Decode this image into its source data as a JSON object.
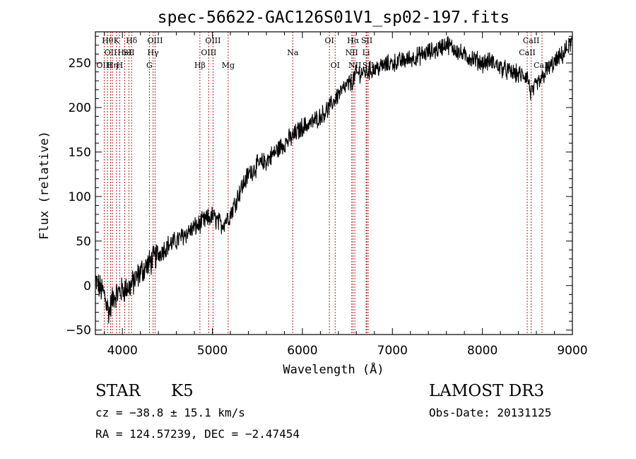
{
  "chart_data": {
    "type": "line",
    "title": "spec-56622-GAC126S01V1_sp02-197.fits",
    "xlabel": "Wavelength (Å)",
    "ylabel": "Flux (relative)",
    "xlim": [
      3700,
      9000
    ],
    "ylim": [
      -55,
      285
    ],
    "xticks": [
      4000,
      5000,
      6000,
      7000,
      8000,
      9000
    ],
    "yticks": [
      -50,
      0,
      50,
      100,
      150,
      200,
      250
    ],
    "line_color": "#000000",
    "marker_color": "#b22222",
    "spectrum_anchor_points": {
      "wavelength": [
        3700,
        3800,
        3850,
        3900,
        4000,
        4100,
        4200,
        4300,
        4400,
        4500,
        4600,
        4700,
        4800,
        4900,
        5000,
        5100,
        5200,
        5300,
        5400,
        5500,
        5600,
        5700,
        5800,
        5900,
        6000,
        6100,
        6200,
        6300,
        6400,
        6500,
        6560,
        6600,
        6700,
        6800,
        6900,
        7000,
        7100,
        7200,
        7300,
        7400,
        7500,
        7600,
        7700,
        7800,
        7900,
        8000,
        8100,
        8200,
        8300,
        8400,
        8500,
        8540,
        8600,
        8660,
        8700,
        8800,
        8900,
        9000
      ],
      "flux": [
        5,
        -10,
        -30,
        -12,
        -5,
        0,
        15,
        25,
        35,
        45,
        50,
        58,
        65,
        72,
        78,
        68,
        80,
        105,
        125,
        135,
        140,
        150,
        160,
        168,
        178,
        183,
        190,
        200,
        215,
        225,
        230,
        238,
        240,
        243,
        247,
        250,
        252,
        255,
        258,
        262,
        265,
        272,
        265,
        258,
        255,
        250,
        252,
        245,
        240,
        237,
        235,
        215,
        225,
        232,
        240,
        250,
        260,
        275
      ]
    },
    "line_markers": [
      {
        "wavelength": 3798,
        "label": "OIII",
        "row": 3
      },
      {
        "wavelength": 3835,
        "label": "Hθ",
        "row": 1
      },
      {
        "wavelength": 3869,
        "label": "OII",
        "row": 2
      },
      {
        "wavelength": 3889,
        "label": "Hη",
        "row": 3
      },
      {
        "wavelength": 3934,
        "label": "K",
        "row": 1
      },
      {
        "wavelength": 3970,
        "label": "H",
        "row": 3
      },
      {
        "wavelength": 4026,
        "label": "HeI",
        "row": 2
      },
      {
        "wavelength": 4072,
        "label": "SII",
        "row": 2
      },
      {
        "wavelength": 4102,
        "label": "Hδ",
        "row": 1
      },
      {
        "wavelength": 4300,
        "label": "G",
        "row": 3
      },
      {
        "wavelength": 4341,
        "label": "Hγ",
        "row": 2
      },
      {
        "wavelength": 4363,
        "label": "OIII",
        "row": 1
      },
      {
        "wavelength": 4861,
        "label": "Hβ",
        "row": 3
      },
      {
        "wavelength": 4959,
        "label": "OIII",
        "row": 2
      },
      {
        "wavelength": 5007,
        "label": "OIII",
        "row": 1
      },
      {
        "wavelength": 5175,
        "label": "Mg",
        "row": 3
      },
      {
        "wavelength": 5893,
        "label": "Na",
        "row": 2
      },
      {
        "wavelength": 6300,
        "label": "OI",
        "row": 1
      },
      {
        "wavelength": 6364,
        "label": "OI",
        "row": 3
      },
      {
        "wavelength": 6548,
        "label": "NII",
        "row": 2
      },
      {
        "wavelength": 6563,
        "label": "Hα",
        "row": 1
      },
      {
        "wavelength": 6583,
        "label": "NII",
        "row": 3
      },
      {
        "wavelength": 6708,
        "label": "Li",
        "row": 2
      },
      {
        "wavelength": 6716,
        "label": "SII",
        "row": 1
      },
      {
        "wavelength": 6731,
        "label": "SII",
        "row": 3
      },
      {
        "wavelength": 8498,
        "label": "CaII",
        "row": 2
      },
      {
        "wavelength": 8542,
        "label": "CaII",
        "row": 1
      },
      {
        "wavelength": 8662,
        "label": "CaII",
        "row": 3
      }
    ]
  },
  "info": {
    "object_class": "STAR",
    "subclass": "K5",
    "velocity": "cz = −38.8 ± 15.1 km/s",
    "coordinates": "RA = 124.57239, DEC =  −2.47454",
    "survey": "LAMOST DR3",
    "obs_date": "Obs-Date: 20131125"
  }
}
